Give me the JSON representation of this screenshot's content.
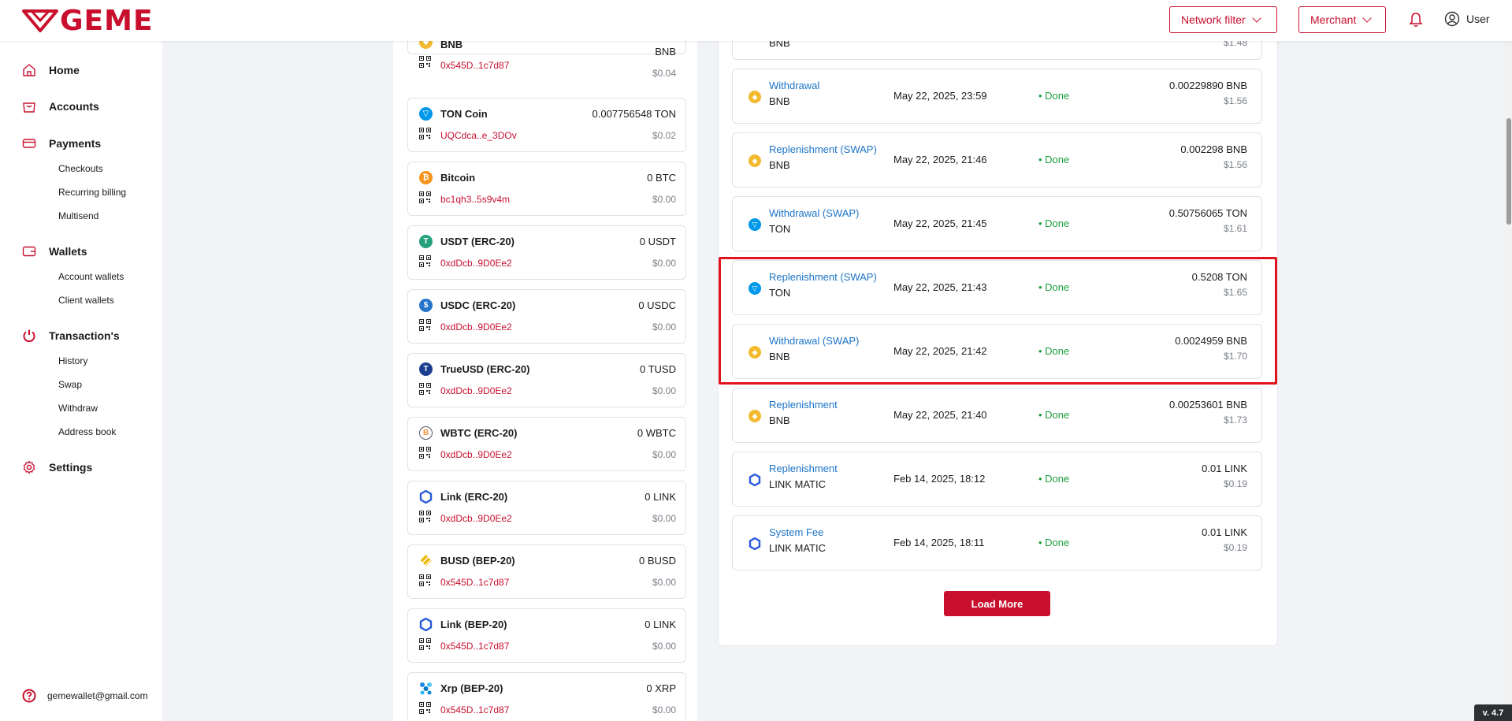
{
  "header": {
    "logo": "GEME",
    "network_filter_label": "Network filter",
    "merchant_label": "Merchant",
    "user_label": "User"
  },
  "sidebar": {
    "home": "Home",
    "accounts": "Accounts",
    "payments": "Payments",
    "checkouts": "Checkouts",
    "recurring": "Recurring billing",
    "multisend": "Multisend",
    "wallets": "Wallets",
    "account_wallets": "Account wallets",
    "client_wallets": "Client wallets",
    "transactions": "Transaction's",
    "history": "History",
    "swap": "Swap",
    "withdraw": "Withdraw",
    "address_book": "Address book",
    "settings": "Settings",
    "email": "gemewallet@gmail.com"
  },
  "assets": [
    {
      "name": "BNB",
      "address": "0x545D..1c7d87",
      "amount": "BNB",
      "usd": "$0.04"
    },
    {
      "name": "TON Coin",
      "address": "UQCdca..e_3DOv",
      "amount": "0.007756548 TON",
      "usd": "$0.02"
    },
    {
      "name": "Bitcoin",
      "address": "bc1qh3..5s9v4m",
      "amount": "0 BTC",
      "usd": "$0.00"
    },
    {
      "name": "USDT (ERC-20)",
      "address": "0xdDcb..9D0Ee2",
      "amount": "0 USDT",
      "usd": "$0.00"
    },
    {
      "name": "USDC (ERC-20)",
      "address": "0xdDcb..9D0Ee2",
      "amount": "0 USDC",
      "usd": "$0.00"
    },
    {
      "name": "TrueUSD (ERC-20)",
      "address": "0xdDcb..9D0Ee2",
      "amount": "0 TUSD",
      "usd": "$0.00"
    },
    {
      "name": "WBTC (ERC-20)",
      "address": "0xdDcb..9D0Ee2",
      "amount": "0 WBTC",
      "usd": "$0.00"
    },
    {
      "name": "Link (ERC-20)",
      "address": "0xdDcb..9D0Ee2",
      "amount": "0 LINK",
      "usd": "$0.00"
    },
    {
      "name": "BUSD (BEP-20)",
      "address": "0x545D..1c7d87",
      "amount": "0 BUSD",
      "usd": "$0.00"
    },
    {
      "name": "Link (BEP-20)",
      "address": "0x545D..1c7d87",
      "amount": "0 LINK",
      "usd": "$0.00"
    },
    {
      "name": "Xrp (BEP-20)",
      "address": "0x545D..1c7d87",
      "amount": "0 XRP",
      "usd": "$0.00"
    }
  ],
  "transactions": [
    {
      "type": "",
      "network": "BNB",
      "date": "",
      "status": "",
      "amount": "",
      "usd": "$1.48"
    },
    {
      "type": "Withdrawal",
      "network": "BNB",
      "date": "May 22, 2025, 23:59",
      "status": "• Done",
      "amount": "0.00229890 BNB",
      "usd": "$1.56"
    },
    {
      "type": "Replenishment (SWAP)",
      "network": "BNB",
      "date": "May 22, 2025, 21:46",
      "status": "• Done",
      "amount": "0.002298 BNB",
      "usd": "$1.56"
    },
    {
      "type": "Withdrawal (SWAP)",
      "network": "TON",
      "date": "May 22, 2025, 21:45",
      "status": "• Done",
      "amount": "0.50756065 TON",
      "usd": "$1.61"
    },
    {
      "type": "Replenishment (SWAP)",
      "network": "TON",
      "date": "May 22, 2025, 21:43",
      "status": "• Done",
      "amount": "0.5208 TON",
      "usd": "$1.65"
    },
    {
      "type": "Withdrawal (SWAP)",
      "network": "BNB",
      "date": "May 22, 2025, 21:42",
      "status": "• Done",
      "amount": "0.0024959 BNB",
      "usd": "$1.70"
    },
    {
      "type": "Replenishment",
      "network": "BNB",
      "date": "May 22, 2025, 21:40",
      "status": "• Done",
      "amount": "0.00253601 BNB",
      "usd": "$1.73"
    },
    {
      "type": "Replenishment",
      "network": "LINK MATIC",
      "date": "Feb 14, 2025, 18:12",
      "status": "• Done",
      "amount": "0.01 LINK",
      "usd": "$0.19"
    },
    {
      "type": "System Fee",
      "network": "LINK MATIC",
      "date": "Feb 14, 2025, 18:11",
      "status": "• Done",
      "amount": "0.01 LINK",
      "usd": "$0.19"
    }
  ],
  "load_more_label": "Load More",
  "version": "v. 4.7",
  "colors": {
    "brand": "#c8102e",
    "link": "#1a73c7",
    "done": "#1f9d3f",
    "highlight": "#e0141e"
  }
}
